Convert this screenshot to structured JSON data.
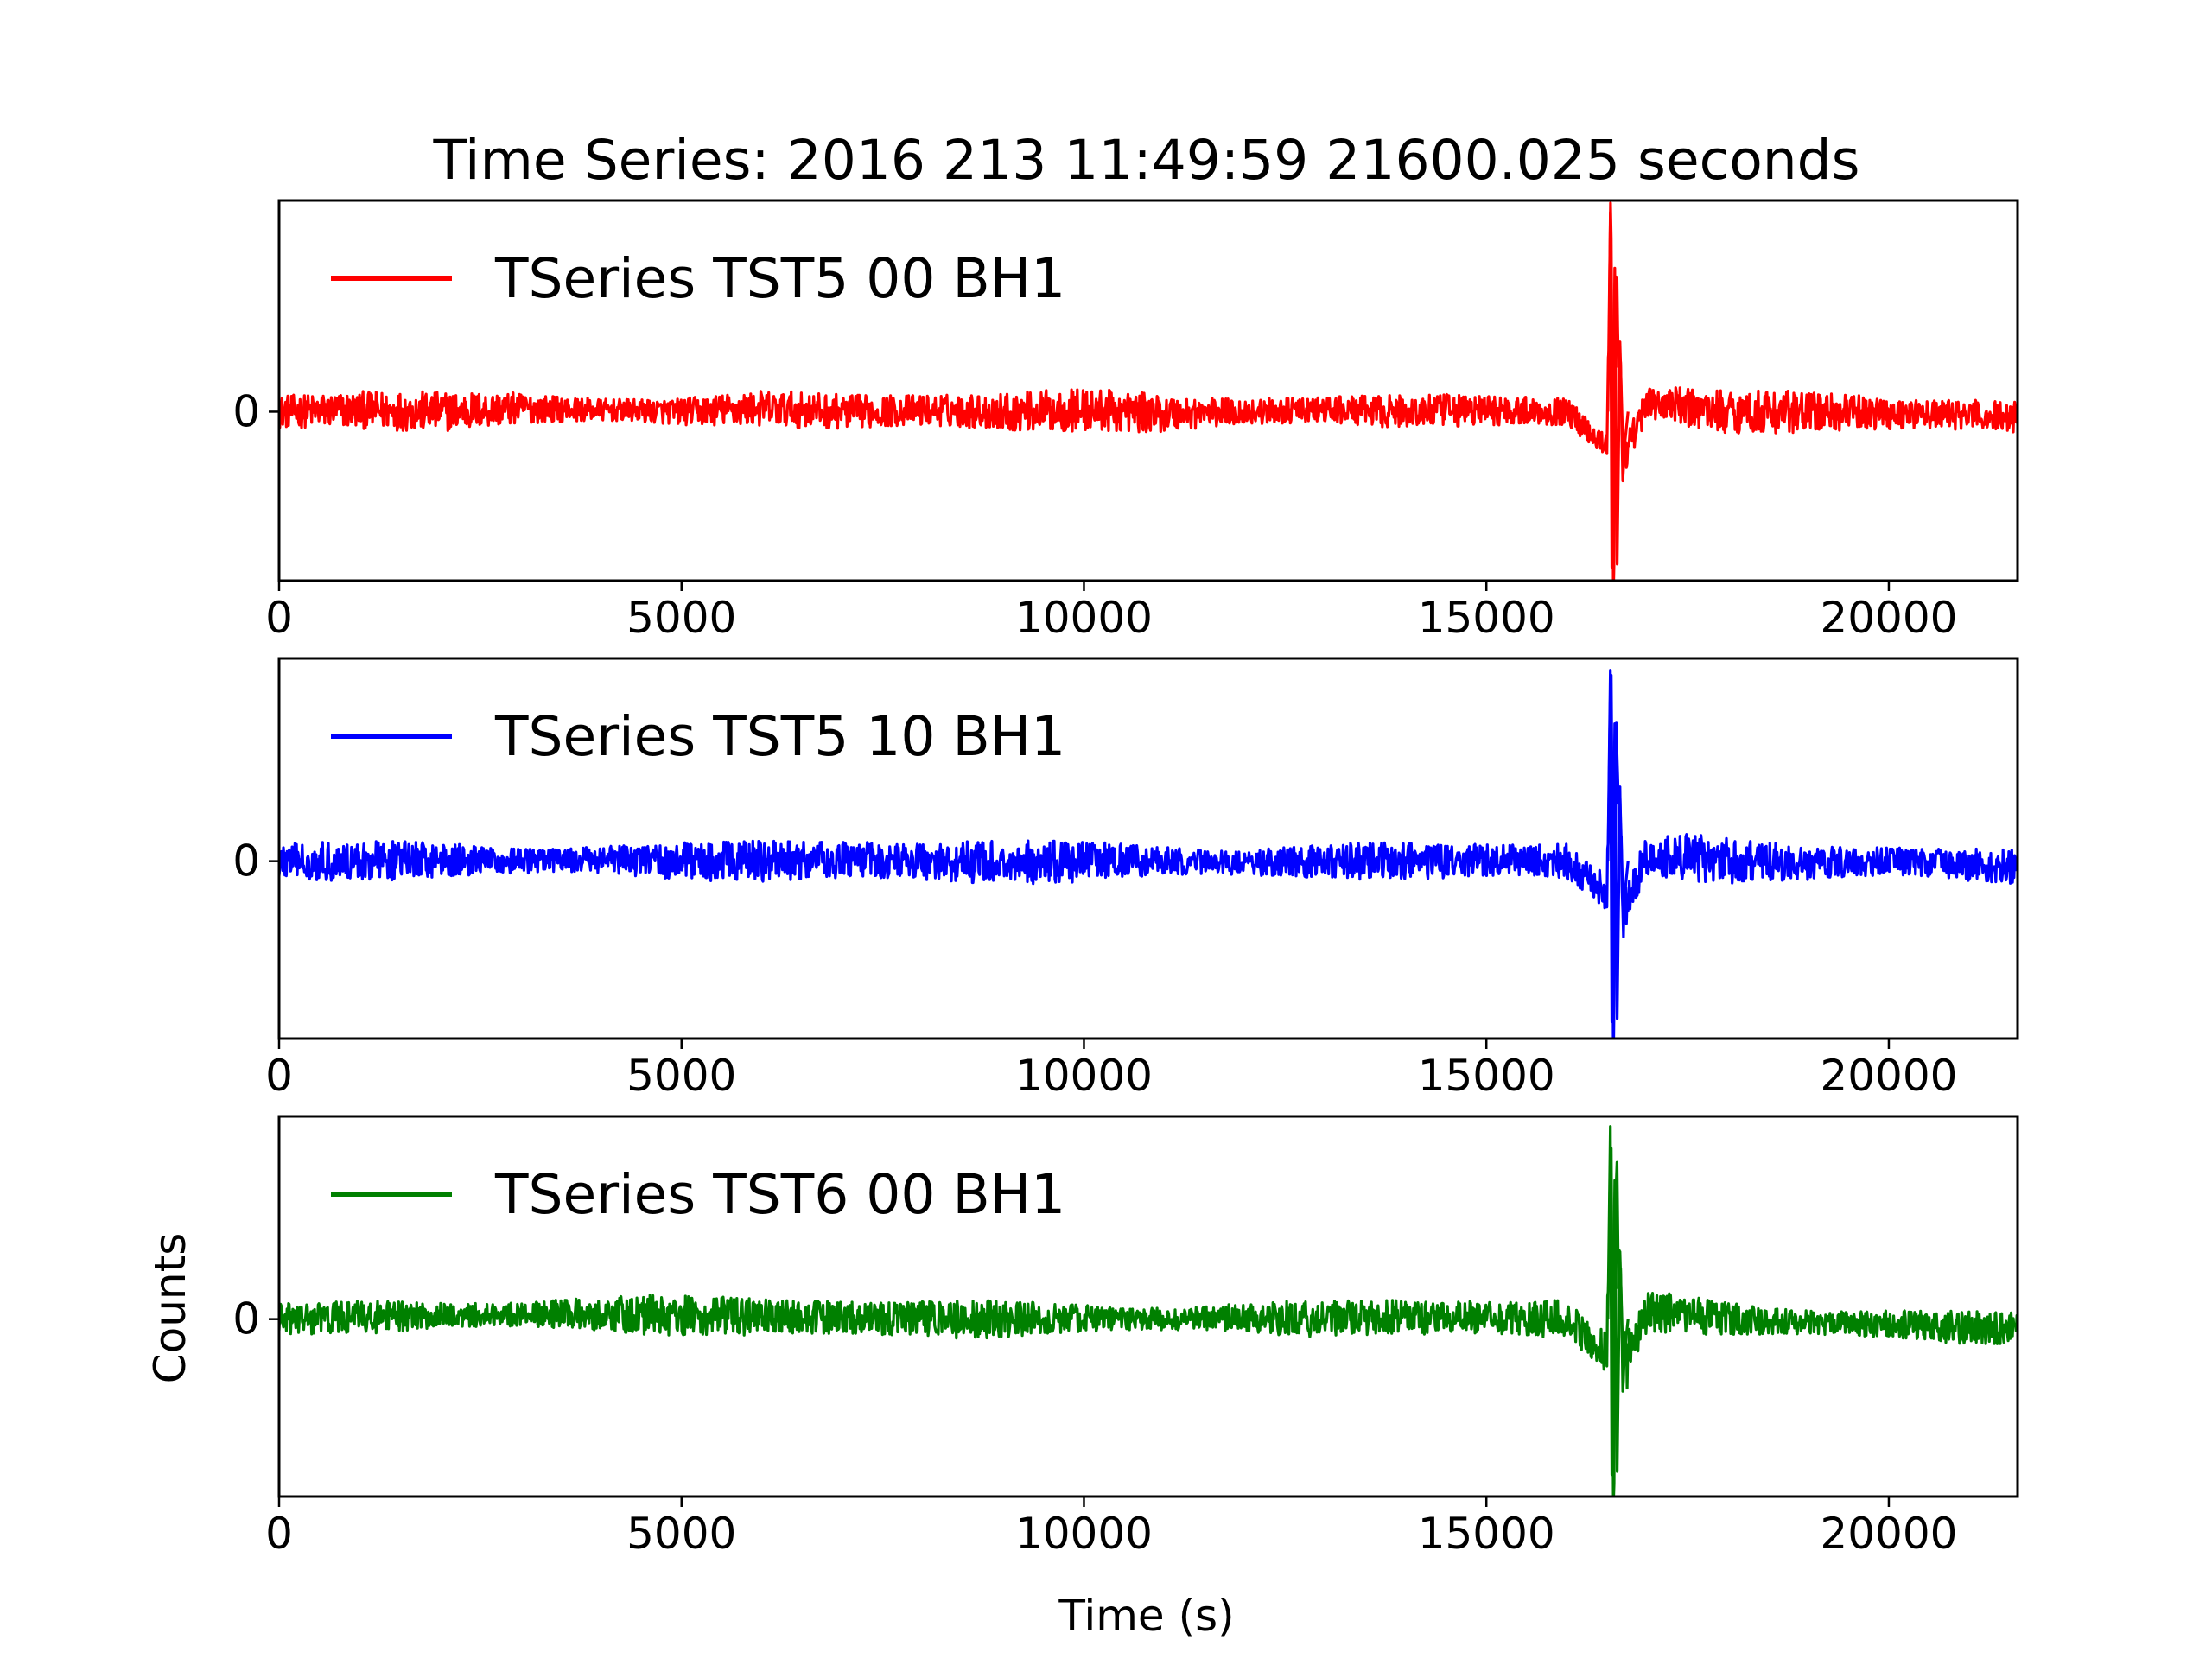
{
  "chart_data": {
    "type": "line",
    "title": "Time Series: 2016 213 11:49:59 21600.025 seconds",
    "xlabel": "Time (s)",
    "ylabel": "Counts",
    "xlim": [
      0,
      21600.025
    ],
    "xticks": [
      0,
      5000,
      10000,
      15000,
      20000
    ],
    "yticks": [
      0
    ],
    "grid": false,
    "legend_placement": "upper-left",
    "panels": [
      {
        "name": "TSeries TST5 00 BH1",
        "color": "#ff0000",
        "ylim": [
          -1.0,
          1.25
        ],
        "noise_amplitude": 0.13,
        "event": {
          "t": 16540,
          "peak_max": 1.18,
          "peak_min": -0.92
        },
        "x": [
          0,
          1000,
          2000,
          3000,
          4000,
          5000,
          6000,
          7000,
          8000,
          9000,
          10000,
          11000,
          12000,
          13000,
          14000,
          15000,
          16000,
          16500,
          16540,
          16580,
          16620,
          16700,
          17000,
          18000,
          19000,
          20000,
          21000,
          21600
        ],
        "y": [
          0.0,
          0.01,
          0.0,
          0.02,
          0.01,
          0.0,
          0.02,
          0.0,
          0.01,
          0.0,
          0.01,
          -0.01,
          0.0,
          0.01,
          0.0,
          0.01,
          0.0,
          -0.2,
          1.18,
          -0.92,
          0.8,
          -0.3,
          0.05,
          0.0,
          0.0,
          -0.01,
          -0.02,
          -0.03
        ]
      },
      {
        "name": "TSeries TST5 10 BH1",
        "color": "#0000ff",
        "ylim": [
          -1.05,
          1.2
        ],
        "noise_amplitude": 0.14,
        "event": {
          "t": 16540,
          "peak_max": 1.13,
          "peak_min": -0.95
        },
        "x": [
          0,
          1000,
          2000,
          3000,
          4000,
          5000,
          6000,
          7000,
          8000,
          9000,
          10000,
          11000,
          12000,
          13000,
          14000,
          15000,
          16000,
          16500,
          16540,
          16580,
          16620,
          16700,
          17000,
          18000,
          19000,
          20000,
          21000,
          21600
        ],
        "y": [
          0.0,
          0.0,
          0.01,
          0.0,
          0.01,
          0.0,
          0.0,
          0.01,
          0.0,
          -0.01,
          0.0,
          0.0,
          -0.01,
          0.0,
          0.0,
          0.01,
          0.0,
          -0.2,
          1.13,
          -0.95,
          0.75,
          -0.3,
          0.05,
          0.0,
          -0.01,
          0.0,
          -0.02,
          -0.03
        ]
      },
      {
        "name": "TSeries TST6 00 BH1",
        "color": "#008000",
        "ylim": [
          -1.05,
          1.2
        ],
        "noise_amplitude": 0.13,
        "event": {
          "t": 16540,
          "peak_max": 1.14,
          "peak_min": -0.92
        },
        "x": [
          0,
          1000,
          2000,
          3000,
          4000,
          5000,
          6000,
          7000,
          8000,
          9000,
          10000,
          11000,
          12000,
          13000,
          14000,
          15000,
          16000,
          16500,
          16540,
          16580,
          16620,
          16700,
          17000,
          18000,
          19000,
          20000,
          21000,
          21600
        ],
        "y": [
          0.0,
          0.01,
          0.02,
          0.03,
          0.03,
          0.02,
          0.01,
          0.01,
          0.0,
          0.0,
          0.0,
          0.0,
          0.01,
          0.0,
          0.01,
          0.01,
          0.0,
          -0.2,
          1.14,
          -0.92,
          0.8,
          -0.3,
          0.05,
          0.0,
          -0.02,
          -0.03,
          -0.05,
          -0.06
        ]
      }
    ]
  }
}
